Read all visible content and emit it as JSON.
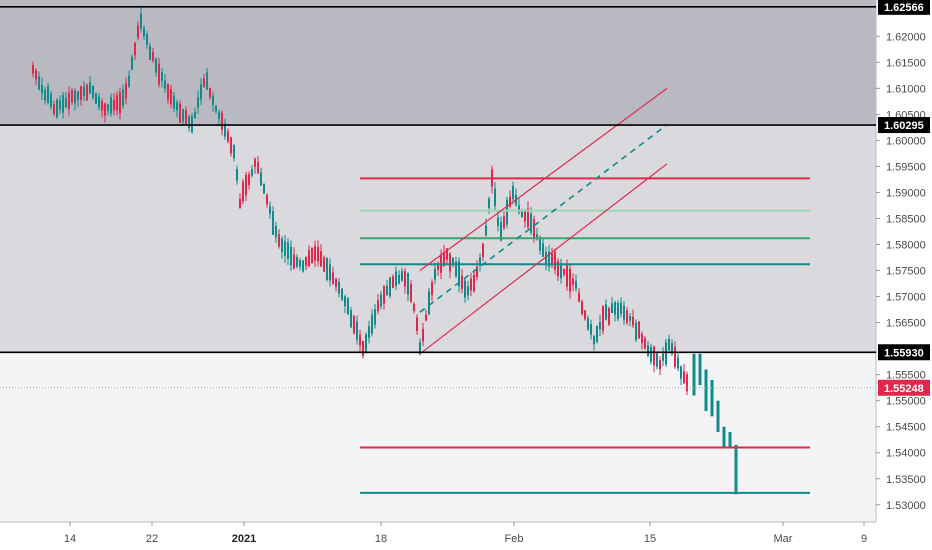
{
  "chart_data": {
    "type": "candlestick",
    "y_range": [
      1.529,
      1.6262
    ],
    "y_ticks": [
      "1.53000",
      "1.53500",
      "1.54000",
      "1.54500",
      "1.55000",
      "1.55500",
      "1.56500",
      "1.57000",
      "1.57500",
      "1.58000",
      "1.58500",
      "1.59000",
      "1.59500",
      "1.60000",
      "1.60500",
      "1.61000",
      "1.61500",
      "1.62000"
    ],
    "x_ticks": [
      {
        "label": "14",
        "bold": false
      },
      {
        "label": "22",
        "bold": false
      },
      {
        "label": "2021",
        "bold": true
      },
      {
        "label": "18",
        "bold": false
      },
      {
        "label": "Feb",
        "bold": false
      },
      {
        "label": "15",
        "bold": false
      },
      {
        "label": "Mar",
        "bold": false
      },
      {
        "label": "9",
        "bold": false
      }
    ],
    "price_badges": [
      {
        "label": "1.62566",
        "value": 1.62566,
        "color": "#000000"
      },
      {
        "label": "1.60295",
        "value": 1.60295,
        "color": "#000000"
      },
      {
        "label": "1.55930",
        "value": 1.5593,
        "color": "#000000"
      },
      {
        "label": "1.55248",
        "value": 1.55248,
        "color": "#e0294a"
      }
    ],
    "current_price": 1.55248,
    "support_resistance_lines": [
      1.62566,
      1.60295,
      1.5593
    ],
    "horizontal_levels": [
      {
        "value": 1.5927,
        "color": "#e0294a"
      },
      {
        "value": 1.5865,
        "color": "#9fd4b4"
      },
      {
        "value": 1.5812,
        "color": "#3aa56e"
      },
      {
        "value": 1.5762,
        "color": "#12898a"
      },
      {
        "value": 1.541,
        "color": "#e0294a"
      },
      {
        "value": 1.5323,
        "color": "#12898a"
      }
    ],
    "channel": {
      "color": "#e0294a",
      "mid_color": "#12898a"
    },
    "colors": {
      "up": "#12898a",
      "down": "#e0294a",
      "zone_upper": "#b8b9c1",
      "zone_middle": "#d9d9de",
      "zone_lower": "#f4f4f6"
    }
  }
}
